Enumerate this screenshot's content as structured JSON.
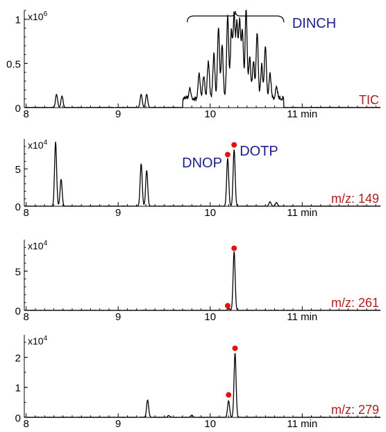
{
  "colors": {
    "trace": "#000000",
    "marker": "#e81010",
    "blue_annotation": "#1c1c8c",
    "red_annotation": "#b01c1c"
  },
  "chart_data": [
    {
      "type": "line",
      "xlim": [
        7.98,
        11.85
      ],
      "x_ticks": [
        "8",
        "9",
        "10",
        "11 min"
      ],
      "ylim": [
        0,
        1.1
      ],
      "y_ticks": [
        "0",
        "0.5",
        "1"
      ],
      "multiplier_base": "x10",
      "multiplier_exp": "6",
      "trace_label": "TIC",
      "annotations": [
        {
          "text": "DINCH",
          "range": [
            9.75,
            10.8
          ]
        }
      ],
      "peaks": [
        {
          "x": 8.33,
          "y": 0.15
        },
        {
          "x": 8.39,
          "y": 0.13
        },
        {
          "x": 9.25,
          "y": 0.15
        },
        {
          "x": 9.31,
          "y": 0.15
        },
        {
          "x": 9.78,
          "y": 0.1
        },
        {
          "x": 9.88,
          "y": 0.28
        },
        {
          "x": 9.93,
          "y": 0.25
        },
        {
          "x": 9.98,
          "y": 0.42
        },
        {
          "x": 10.04,
          "y": 0.5
        },
        {
          "x": 10.09,
          "y": 0.79
        },
        {
          "x": 10.13,
          "y": 0.6
        },
        {
          "x": 10.19,
          "y": 0.95
        },
        {
          "x": 10.23,
          "y": 0.75
        },
        {
          "x": 10.26,
          "y": 0.93
        },
        {
          "x": 10.29,
          "y": 0.85
        },
        {
          "x": 10.32,
          "y": 0.86
        },
        {
          "x": 10.35,
          "y": 0.75
        },
        {
          "x": 10.39,
          "y": 1.02
        },
        {
          "x": 10.43,
          "y": 0.48
        },
        {
          "x": 10.47,
          "y": 0.42
        },
        {
          "x": 10.51,
          "y": 0.76
        },
        {
          "x": 10.56,
          "y": 0.38
        },
        {
          "x": 10.6,
          "y": 0.6
        },
        {
          "x": 10.65,
          "y": 0.28
        },
        {
          "x": 10.72,
          "y": 0.13
        }
      ],
      "markers": []
    },
    {
      "type": "line",
      "xlim": [
        7.98,
        11.85
      ],
      "x_ticks": [
        "8",
        "9",
        "10",
        "11 min"
      ],
      "ylim": [
        0,
        9.0
      ],
      "y_ticks": [
        "0",
        "5"
      ],
      "multiplier_base": "x10",
      "multiplier_exp": "4",
      "trace_label": "m/z: 149",
      "annotations": [
        {
          "text": "DNOP",
          "x": 10.19
        },
        {
          "text": "DOTP",
          "x": 10.26
        }
      ],
      "peaks": [
        {
          "x": 8.32,
          "y": 8.6
        },
        {
          "x": 8.38,
          "y": 3.6
        },
        {
          "x": 9.25,
          "y": 5.7
        },
        {
          "x": 9.31,
          "y": 4.8
        },
        {
          "x": 10.19,
          "y": 6.4
        },
        {
          "x": 10.26,
          "y": 7.6
        },
        {
          "x": 10.65,
          "y": 0.6
        },
        {
          "x": 10.72,
          "y": 0.5
        }
      ],
      "markers": [
        {
          "x": 10.19,
          "y": 6.9
        },
        {
          "x": 10.26,
          "y": 8.2
        }
      ]
    },
    {
      "type": "line",
      "xlim": [
        7.98,
        11.85
      ],
      "x_ticks": [
        "8",
        "9",
        "10",
        "11 min"
      ],
      "ylim": [
        0,
        9.0
      ],
      "y_ticks": [
        "0",
        "5"
      ],
      "multiplier_base": "x10",
      "multiplier_exp": "4",
      "trace_label": "m/z: 261",
      "annotations": [],
      "peaks": [
        {
          "x": 10.26,
          "y": 7.5
        },
        {
          "x": 10.2,
          "y": 0.3
        }
      ],
      "markers": [
        {
          "x": 10.19,
          "y": 0.6
        },
        {
          "x": 10.26,
          "y": 7.9
        }
      ]
    },
    {
      "type": "line",
      "xlim": [
        7.98,
        11.85
      ],
      "x_ticks": [
        "8",
        "9",
        "10",
        "11 min"
      ],
      "ylim": [
        0,
        2.75
      ],
      "y_ticks": [
        "0",
        "1",
        "2"
      ],
      "multiplier_base": "x10",
      "multiplier_exp": "4",
      "trace_label": "m/z: 279",
      "annotations": [],
      "peaks": [
        {
          "x": 9.32,
          "y": 0.58
        },
        {
          "x": 10.2,
          "y": 0.55
        },
        {
          "x": 10.27,
          "y": 2.15
        },
        {
          "x": 9.55,
          "y": 0.06
        },
        {
          "x": 9.8,
          "y": 0.07
        }
      ],
      "markers": [
        {
          "x": 10.2,
          "y": 0.75
        },
        {
          "x": 10.27,
          "y": 2.3
        }
      ]
    }
  ]
}
